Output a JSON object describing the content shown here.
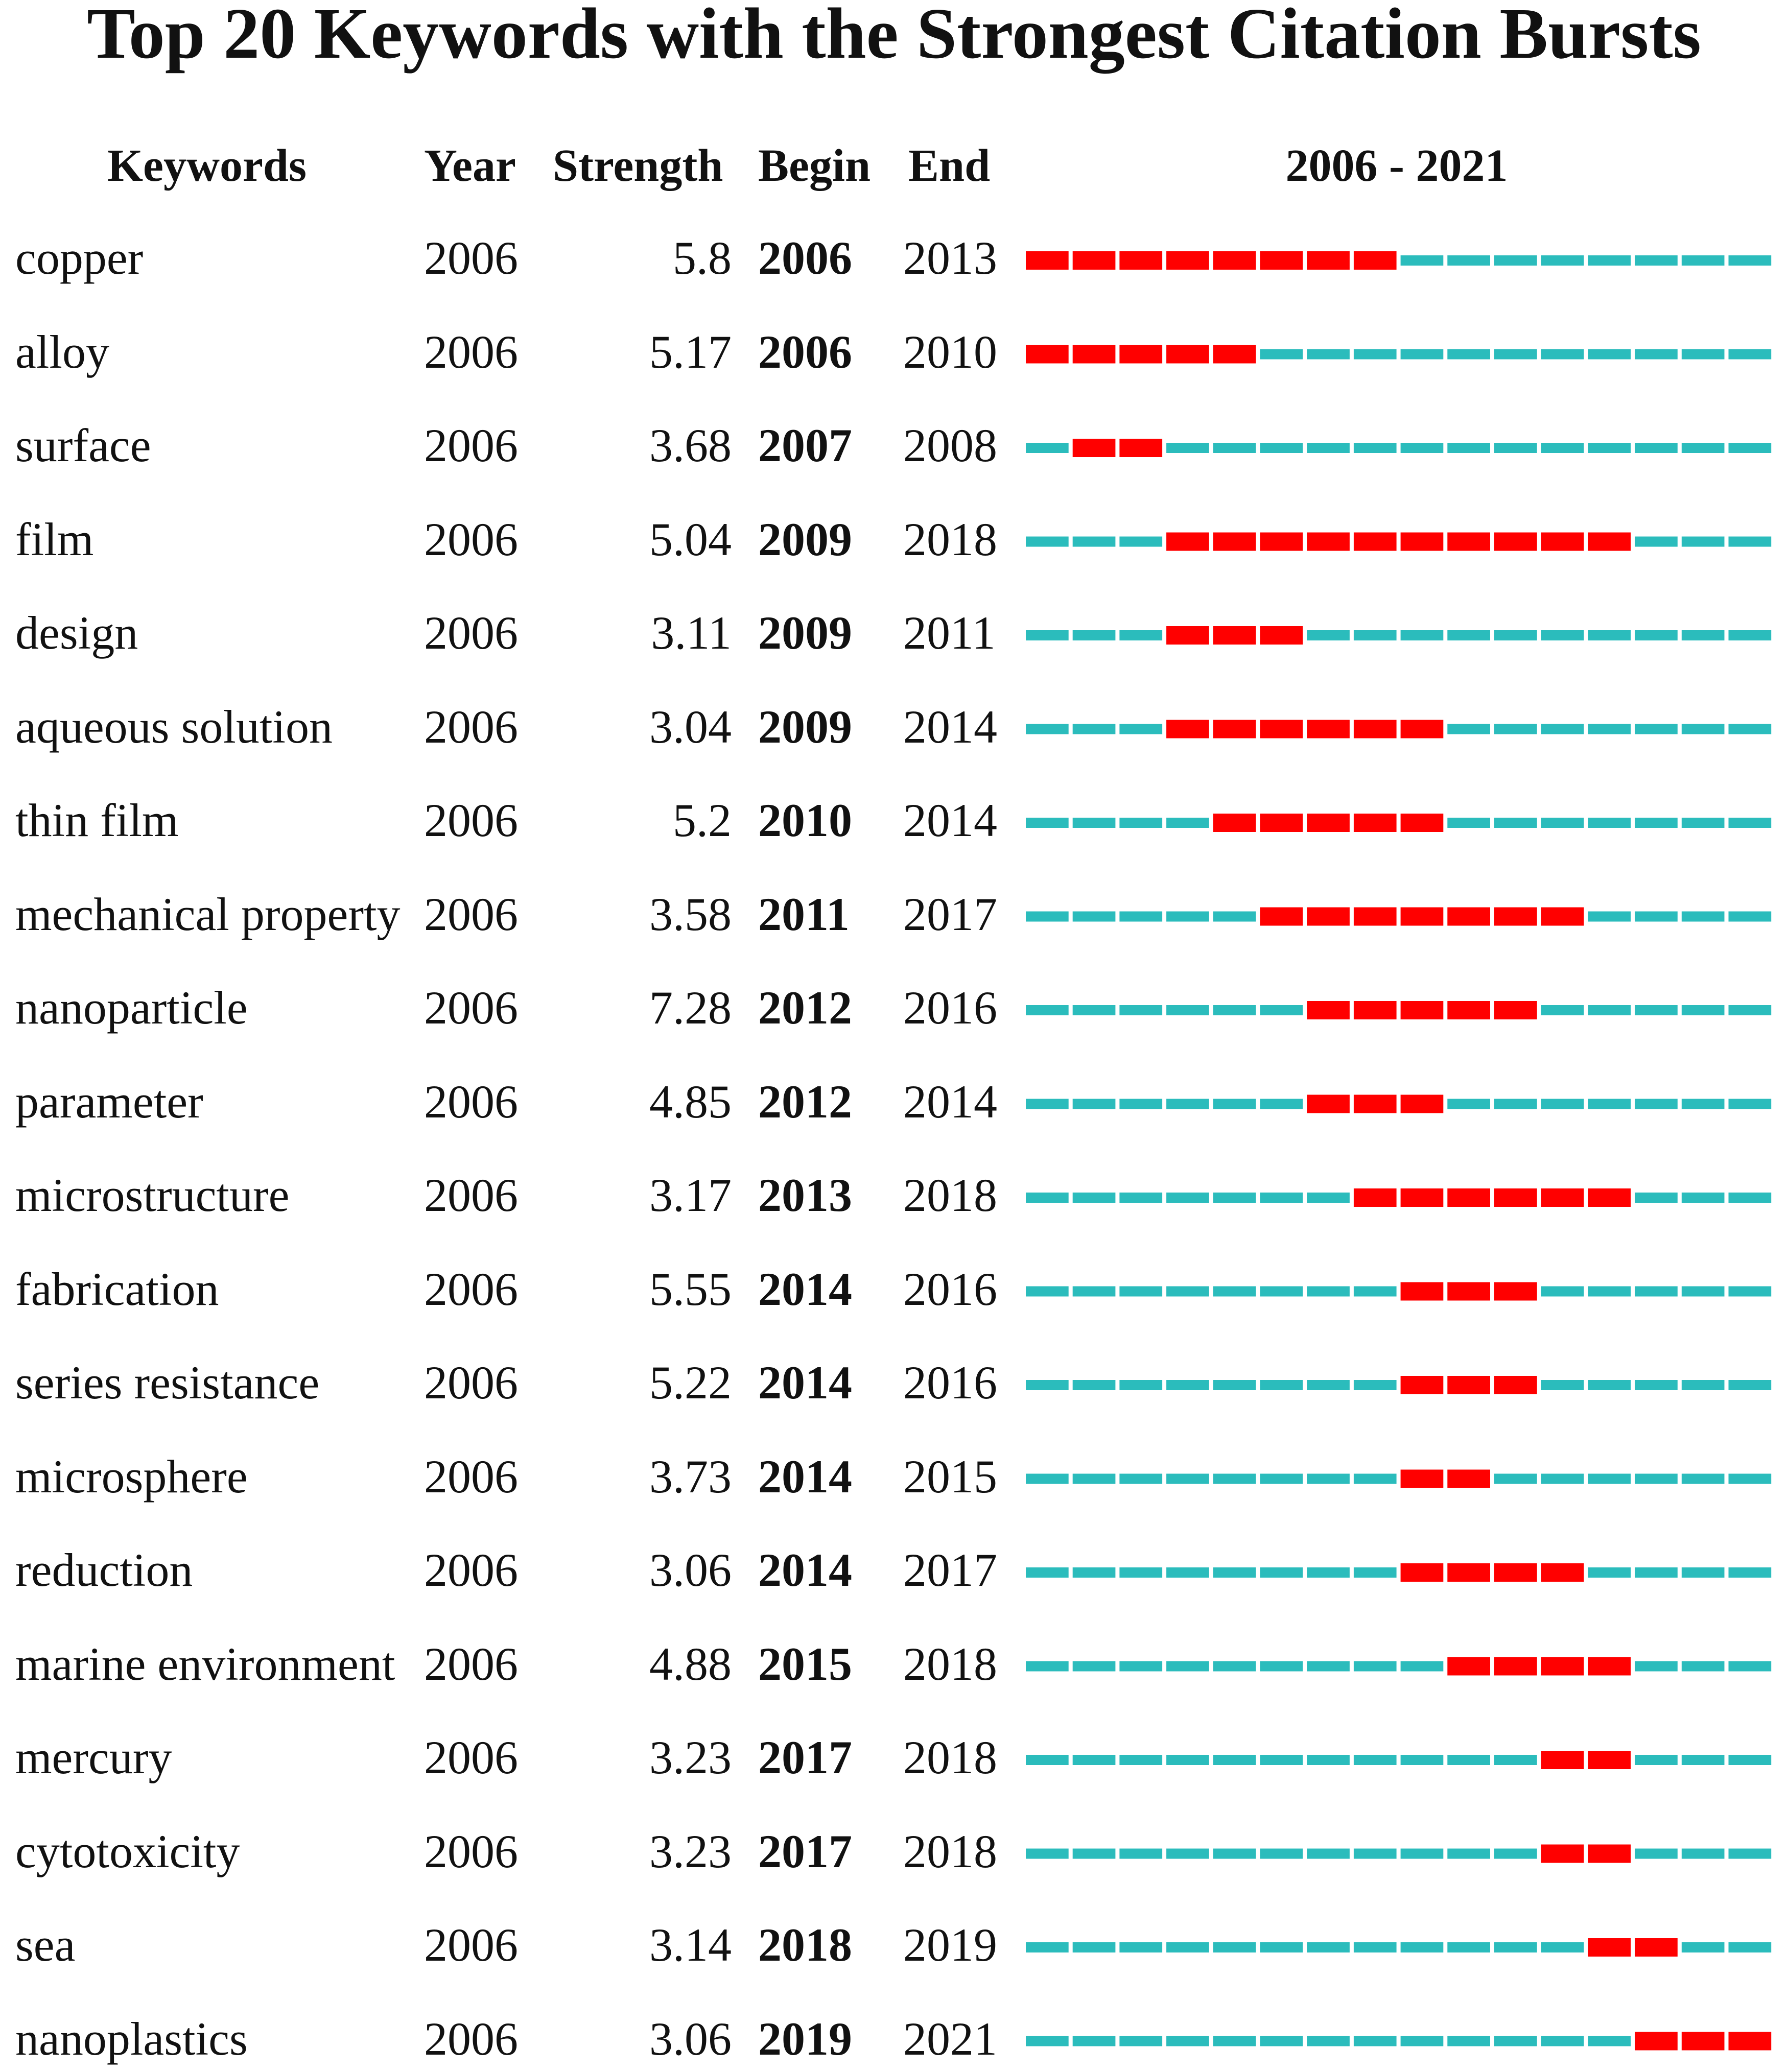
{
  "chart_data": {
    "type": "table",
    "title": "Top 20 Keywords with the Strongest Citation Bursts",
    "columns": [
      "Keywords",
      "Year",
      "Strength",
      "Begin",
      "End",
      "2006 - 2021"
    ],
    "range": [
      2006,
      2021
    ],
    "colors": {
      "burst": "#ff0000",
      "baseline": "#2bbcbc"
    },
    "rows": [
      {
        "keyword": "copper",
        "year": "2006",
        "strength": "5.8",
        "begin": "2006",
        "end": "2013"
      },
      {
        "keyword": "alloy",
        "year": "2006",
        "strength": "5.17",
        "begin": "2006",
        "end": "2010"
      },
      {
        "keyword": "surface",
        "year": "2006",
        "strength": "3.68",
        "begin": "2007",
        "end": "2008"
      },
      {
        "keyword": "film",
        "year": "2006",
        "strength": "5.04",
        "begin": "2009",
        "end": "2018"
      },
      {
        "keyword": "design",
        "year": "2006",
        "strength": "3.11",
        "begin": "2009",
        "end": "2011"
      },
      {
        "keyword": "aqueous solution",
        "year": "2006",
        "strength": "3.04",
        "begin": "2009",
        "end": "2014"
      },
      {
        "keyword": "thin film",
        "year": "2006",
        "strength": "5.2",
        "begin": "2010",
        "end": "2014"
      },
      {
        "keyword": "mechanical property",
        "year": "2006",
        "strength": "3.58",
        "begin": "2011",
        "end": "2017"
      },
      {
        "keyword": "nanoparticle",
        "year": "2006",
        "strength": "7.28",
        "begin": "2012",
        "end": "2016"
      },
      {
        "keyword": "parameter",
        "year": "2006",
        "strength": "4.85",
        "begin": "2012",
        "end": "2014"
      },
      {
        "keyword": "microstructure",
        "year": "2006",
        "strength": "3.17",
        "begin": "2013",
        "end": "2018"
      },
      {
        "keyword": "fabrication",
        "year": "2006",
        "strength": "5.55",
        "begin": "2014",
        "end": "2016"
      },
      {
        "keyword": "series resistance",
        "year": "2006",
        "strength": "5.22",
        "begin": "2014",
        "end": "2016"
      },
      {
        "keyword": "microsphere",
        "year": "2006",
        "strength": "3.73",
        "begin": "2014",
        "end": "2015"
      },
      {
        "keyword": "reduction",
        "year": "2006",
        "strength": "3.06",
        "begin": "2014",
        "end": "2017"
      },
      {
        "keyword": "marine environment",
        "year": "2006",
        "strength": "4.88",
        "begin": "2015",
        "end": "2018"
      },
      {
        "keyword": "mercury",
        "year": "2006",
        "strength": "3.23",
        "begin": "2017",
        "end": "2018"
      },
      {
        "keyword": "cytotoxicity",
        "year": "2006",
        "strength": "3.23",
        "begin": "2017",
        "end": "2018"
      },
      {
        "keyword": "sea",
        "year": "2006",
        "strength": "3.14",
        "begin": "2018",
        "end": "2019"
      },
      {
        "keyword": "nanoplastics",
        "year": "2006",
        "strength": "3.06",
        "begin": "2019",
        "end": "2021"
      }
    ]
  }
}
